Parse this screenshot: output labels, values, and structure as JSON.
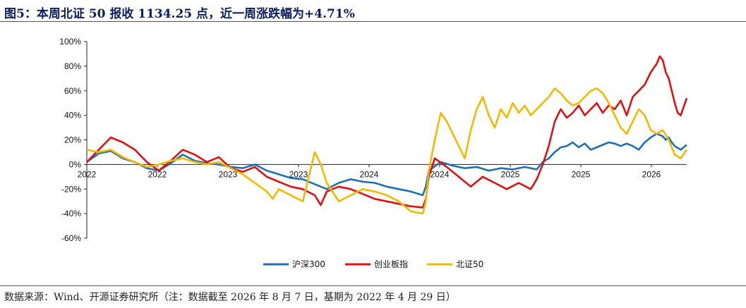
{
  "figure": {
    "title": "图5：本周北证 50 报收 1134.25 点，近一周涨跌幅为+4.71%",
    "source": "数据来源：Wind、开源证券研究所（注：数据截至 2026 年 8 月 7 日，基期为 2022 年 4 月 29 日）"
  },
  "chart_data": {
    "type": "line",
    "y_ticks": [
      "100%",
      "80%",
      "60%",
      "40%",
      "20%",
      "0%",
      "-20%",
      "-40%",
      "-60%"
    ],
    "ylim": [
      -60,
      100
    ],
    "x_tick_labels": [
      "2022",
      "2022",
      "2023",
      "2023",
      "2024",
      "2024",
      "2025",
      "2025",
      "2026"
    ],
    "x_tick_positions": [
      0.0,
      0.1176,
      0.2353,
      0.3529,
      0.4706,
      0.5882,
      0.7059,
      0.8235,
      0.9412
    ],
    "grid": false,
    "legend_position": "bottom",
    "series": [
      {
        "name": "沪深300",
        "color": "#1f6fb4",
        "points": [
          [
            0.0,
            2
          ],
          [
            0.02,
            9
          ],
          [
            0.04,
            11
          ],
          [
            0.06,
            5
          ],
          [
            0.08,
            2
          ],
          [
            0.1,
            -3
          ],
          [
            0.12,
            -5
          ],
          [
            0.14,
            1
          ],
          [
            0.16,
            8
          ],
          [
            0.18,
            3
          ],
          [
            0.2,
            1
          ],
          [
            0.22,
            0
          ],
          [
            0.24,
            -2
          ],
          [
            0.26,
            -3
          ],
          [
            0.28,
            0
          ],
          [
            0.3,
            -5
          ],
          [
            0.32,
            -8
          ],
          [
            0.34,
            -11
          ],
          [
            0.36,
            -12
          ],
          [
            0.38,
            -16
          ],
          [
            0.4,
            -20
          ],
          [
            0.42,
            -15
          ],
          [
            0.44,
            -12
          ],
          [
            0.46,
            -14
          ],
          [
            0.48,
            -15
          ],
          [
            0.5,
            -18
          ],
          [
            0.52,
            -20
          ],
          [
            0.54,
            -22
          ],
          [
            0.56,
            -25
          ],
          [
            0.565,
            -18
          ],
          [
            0.57,
            -5
          ],
          [
            0.59,
            2
          ],
          [
            0.61,
            -1
          ],
          [
            0.63,
            -3
          ],
          [
            0.65,
            -2
          ],
          [
            0.67,
            -5
          ],
          [
            0.69,
            -3
          ],
          [
            0.71,
            -4
          ],
          [
            0.73,
            -2
          ],
          [
            0.75,
            -4
          ],
          [
            0.76,
            2
          ],
          [
            0.77,
            5
          ],
          [
            0.78,
            10
          ],
          [
            0.79,
            14
          ],
          [
            0.8,
            15
          ],
          [
            0.81,
            18
          ],
          [
            0.82,
            14
          ],
          [
            0.83,
            17
          ],
          [
            0.84,
            12
          ],
          [
            0.85,
            14
          ],
          [
            0.86,
            16
          ],
          [
            0.87,
            18
          ],
          [
            0.88,
            17
          ],
          [
            0.89,
            15
          ],
          [
            0.9,
            17
          ],
          [
            0.91,
            15
          ],
          [
            0.92,
            12
          ],
          [
            0.93,
            18
          ],
          [
            0.94,
            22
          ],
          [
            0.95,
            25
          ],
          [
            0.96,
            23
          ],
          [
            0.965,
            20
          ],
          [
            0.97,
            22
          ],
          [
            0.975,
            18
          ],
          [
            0.98,
            15
          ],
          [
            0.99,
            12
          ],
          [
            1.0,
            16
          ]
        ]
      },
      {
        "name": "创业板指",
        "color": "#e01010",
        "points": [
          [
            0.0,
            2
          ],
          [
            0.02,
            12
          ],
          [
            0.04,
            22
          ],
          [
            0.06,
            18
          ],
          [
            0.08,
            12
          ],
          [
            0.1,
            2
          ],
          [
            0.12,
            -5
          ],
          [
            0.14,
            3
          ],
          [
            0.16,
            12
          ],
          [
            0.18,
            8
          ],
          [
            0.2,
            2
          ],
          [
            0.22,
            6
          ],
          [
            0.24,
            -3
          ],
          [
            0.26,
            -6
          ],
          [
            0.28,
            -2
          ],
          [
            0.3,
            -10
          ],
          [
            0.32,
            -14
          ],
          [
            0.34,
            -18
          ],
          [
            0.36,
            -20
          ],
          [
            0.38,
            -25
          ],
          [
            0.39,
            -33
          ],
          [
            0.4,
            -22
          ],
          [
            0.42,
            -18
          ],
          [
            0.44,
            -20
          ],
          [
            0.46,
            -24
          ],
          [
            0.48,
            -28
          ],
          [
            0.5,
            -30
          ],
          [
            0.52,
            -32
          ],
          [
            0.54,
            -34
          ],
          [
            0.56,
            -35
          ],
          [
            0.565,
            -28
          ],
          [
            0.57,
            -10
          ],
          [
            0.58,
            5
          ],
          [
            0.6,
            -2
          ],
          [
            0.62,
            -10
          ],
          [
            0.64,
            -18
          ],
          [
            0.66,
            -10
          ],
          [
            0.68,
            -15
          ],
          [
            0.7,
            -20
          ],
          [
            0.72,
            -15
          ],
          [
            0.74,
            -20
          ],
          [
            0.75,
            -12
          ],
          [
            0.76,
            0
          ],
          [
            0.77,
            15
          ],
          [
            0.78,
            35
          ],
          [
            0.79,
            45
          ],
          [
            0.8,
            38
          ],
          [
            0.81,
            42
          ],
          [
            0.82,
            48
          ],
          [
            0.83,
            40
          ],
          [
            0.84,
            45
          ],
          [
            0.85,
            50
          ],
          [
            0.86,
            42
          ],
          [
            0.87,
            48
          ],
          [
            0.88,
            45
          ],
          [
            0.89,
            52
          ],
          [
            0.9,
            40
          ],
          [
            0.91,
            55
          ],
          [
            0.92,
            60
          ],
          [
            0.93,
            65
          ],
          [
            0.94,
            75
          ],
          [
            0.95,
            82
          ],
          [
            0.955,
            88
          ],
          [
            0.96,
            85
          ],
          [
            0.965,
            75
          ],
          [
            0.97,
            70
          ],
          [
            0.975,
            60
          ],
          [
            0.98,
            50
          ],
          [
            0.985,
            42
          ],
          [
            0.99,
            40
          ],
          [
            1.0,
            54
          ]
        ]
      },
      {
        "name": "北证50",
        "color": "#f5b800",
        "points": [
          [
            0.0,
            12
          ],
          [
            0.02,
            10
          ],
          [
            0.04,
            12
          ],
          [
            0.06,
            6
          ],
          [
            0.08,
            2
          ],
          [
            0.1,
            -2
          ],
          [
            0.12,
            0
          ],
          [
            0.14,
            3
          ],
          [
            0.16,
            5
          ],
          [
            0.18,
            2
          ],
          [
            0.2,
            0
          ],
          [
            0.22,
            2
          ],
          [
            0.24,
            -3
          ],
          [
            0.26,
            -8
          ],
          [
            0.28,
            -15
          ],
          [
            0.3,
            -22
          ],
          [
            0.31,
            -28
          ],
          [
            0.32,
            -20
          ],
          [
            0.34,
            -25
          ],
          [
            0.36,
            -30
          ],
          [
            0.37,
            -10
          ],
          [
            0.38,
            10
          ],
          [
            0.39,
            0
          ],
          [
            0.4,
            -15
          ],
          [
            0.42,
            -30
          ],
          [
            0.44,
            -25
          ],
          [
            0.46,
            -20
          ],
          [
            0.48,
            -22
          ],
          [
            0.5,
            -25
          ],
          [
            0.52,
            -30
          ],
          [
            0.54,
            -38
          ],
          [
            0.56,
            -40
          ],
          [
            0.565,
            -30
          ],
          [
            0.57,
            -5
          ],
          [
            0.58,
            20
          ],
          [
            0.59,
            42
          ],
          [
            0.6,
            35
          ],
          [
            0.61,
            25
          ],
          [
            0.62,
            15
          ],
          [
            0.63,
            5
          ],
          [
            0.64,
            28
          ],
          [
            0.65,
            45
          ],
          [
            0.66,
            55
          ],
          [
            0.67,
            40
          ],
          [
            0.68,
            30
          ],
          [
            0.69,
            45
          ],
          [
            0.7,
            38
          ],
          [
            0.71,
            50
          ],
          [
            0.72,
            42
          ],
          [
            0.73,
            48
          ],
          [
            0.74,
            40
          ],
          [
            0.75,
            45
          ],
          [
            0.76,
            50
          ],
          [
            0.77,
            55
          ],
          [
            0.78,
            62
          ],
          [
            0.79,
            58
          ],
          [
            0.8,
            52
          ],
          [
            0.81,
            48
          ],
          [
            0.82,
            50
          ],
          [
            0.83,
            55
          ],
          [
            0.84,
            60
          ],
          [
            0.85,
            62
          ],
          [
            0.86,
            58
          ],
          [
            0.87,
            50
          ],
          [
            0.88,
            40
          ],
          [
            0.89,
            30
          ],
          [
            0.9,
            25
          ],
          [
            0.91,
            35
          ],
          [
            0.92,
            45
          ],
          [
            0.93,
            40
          ],
          [
            0.94,
            28
          ],
          [
            0.95,
            25
          ],
          [
            0.96,
            28
          ],
          [
            0.97,
            20
          ],
          [
            0.98,
            8
          ],
          [
            0.99,
            5
          ],
          [
            1.0,
            12
          ]
        ]
      }
    ]
  }
}
